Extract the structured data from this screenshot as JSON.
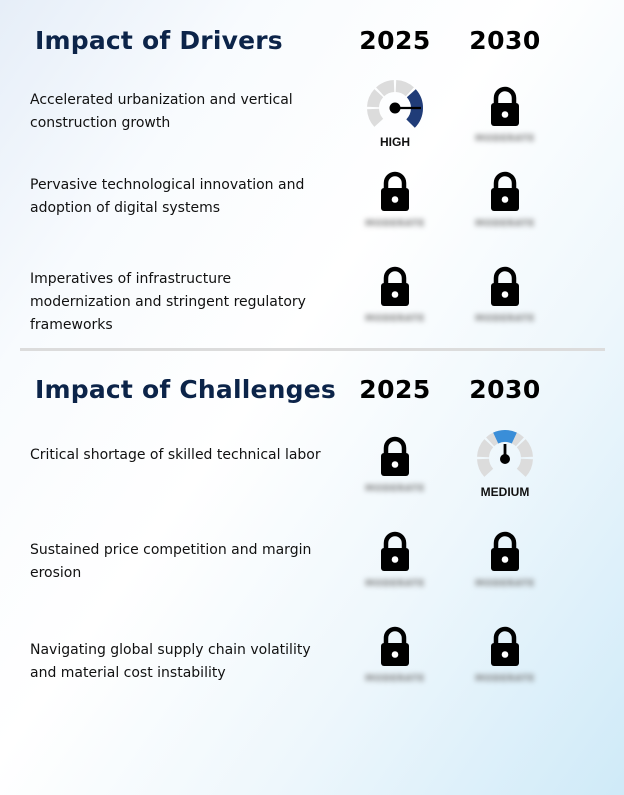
{
  "drivers": {
    "title": "Impact of Drivers",
    "year_a": "2025",
    "year_b": "2030",
    "rows": [
      {
        "label": "Accelerated urbanization and vertical construction growth",
        "y2025": {
          "type": "gauge",
          "level": "HIGH",
          "color": "#203c78"
        },
        "y2030": {
          "type": "locked"
        }
      },
      {
        "label": "Pervasive technological innovation and adoption of digital systems",
        "y2025": {
          "type": "locked"
        },
        "y2030": {
          "type": "locked"
        }
      },
      {
        "label": "Imperatives of infrastructure modernization and stringent regulatory frameworks",
        "y2025": {
          "type": "locked"
        },
        "y2030": {
          "type": "locked"
        }
      }
    ]
  },
  "challenges": {
    "title": "Impact of Challenges",
    "year_a": "2025",
    "year_b": "2030",
    "rows": [
      {
        "label": "Critical shortage of skilled technical labor",
        "y2025": {
          "type": "locked"
        },
        "y2030": {
          "type": "gauge",
          "level": "MEDIUM",
          "color": "#3a8ed8"
        }
      },
      {
        "label": "Sustained price competition and margin erosion",
        "y2025": {
          "type": "locked"
        },
        "y2030": {
          "type": "locked"
        }
      },
      {
        "label": "Navigating global supply chain volatility and material cost instability",
        "y2025": {
          "type": "locked"
        },
        "y2030": {
          "type": "locked"
        }
      }
    ]
  },
  "locked_placeholder": "MODERATE",
  "icons": {
    "lock": "lock-icon",
    "gauge": "gauge-icon"
  },
  "colors": {
    "title": "#0c2449",
    "gauge_track": "#dcdcdc"
  }
}
